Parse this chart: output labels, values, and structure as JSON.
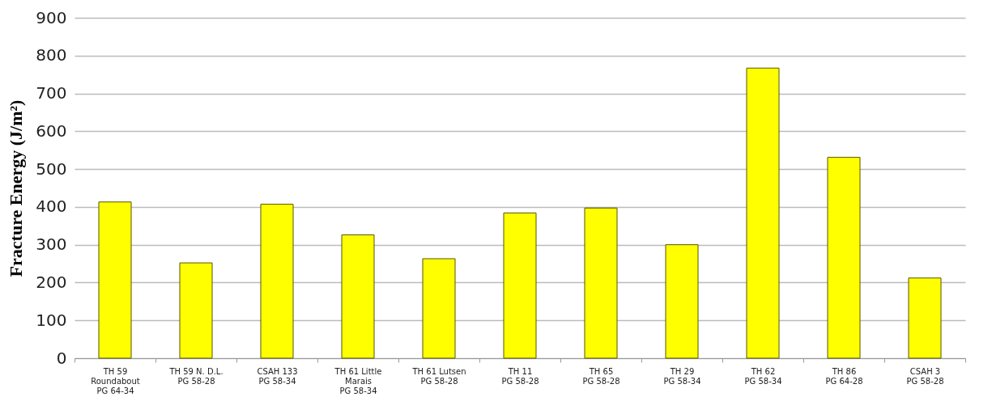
{
  "chart_data": {
    "type": "bar",
    "ylabel": "Fracture Energy (J/m²)",
    "categories": [
      "TH 59\nRoundabout\nPG 64-34",
      "TH 59 N. D.L.\nPG 58-28",
      "CSAH 133\nPG 58-34",
      "TH 61 Little\nMarais\nPG 58-34",
      "TH 61 Lutsen\nPG 58-28",
      "TH 11\nPG 58-28",
      "TH 65\nPG 58-28",
      "TH 29\nPG 58-34",
      "TH 62\nPG 58-34",
      "TH 86\nPG 64-28",
      "CSAH 3\nPG 58-28"
    ],
    "values": [
      413,
      252,
      407,
      326,
      263,
      384,
      397,
      300,
      767,
      531,
      212
    ],
    "color": "#ffff00",
    "ylim": [
      0,
      900
    ],
    "yticks": [
      0,
      100,
      200,
      300,
      400,
      500,
      600,
      700,
      800,
      900
    ],
    "grid": "y"
  }
}
